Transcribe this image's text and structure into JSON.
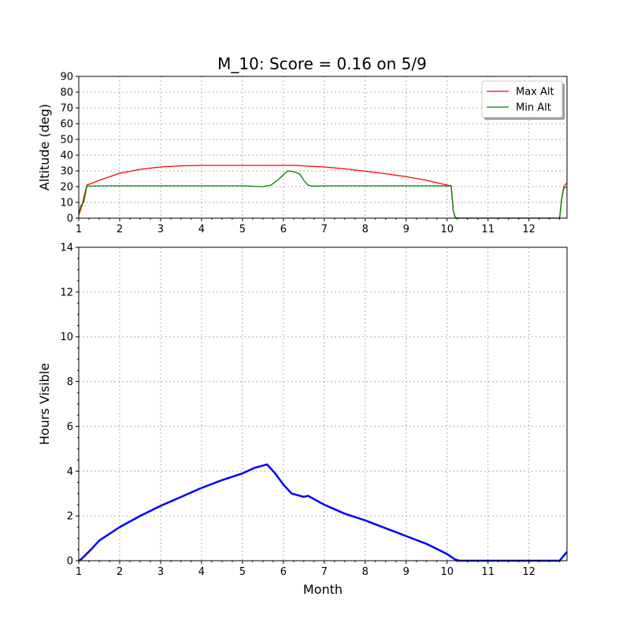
{
  "title": "M_10: Score = 0.16 on 5/9",
  "chart_data": [
    {
      "type": "line",
      "ylabel": "Altitude (deg)",
      "xlabel": "",
      "xlim": [
        1,
        12.93
      ],
      "ylim": [
        0,
        90
      ],
      "xticks": [
        1,
        2,
        3,
        4,
        5,
        6,
        7,
        8,
        9,
        10,
        11,
        12
      ],
      "yticks": [
        0,
        10,
        20,
        30,
        40,
        50,
        60,
        70,
        80,
        90
      ],
      "grid": true,
      "legend_position": "top-right",
      "series": [
        {
          "name": "Max Alt",
          "color": "#ff0000",
          "x": [
            1,
            1.08,
            1.15,
            1.2,
            1.5,
            2,
            2.5,
            3,
            3.5,
            4,
            4.5,
            5,
            5.5,
            6,
            6.3,
            6.6,
            7,
            7.5,
            8,
            8.5,
            9,
            9.5,
            10,
            10.1,
            10.15,
            10.2,
            10.3,
            11,
            12,
            12.75,
            12.8,
            12.85,
            12.93
          ],
          "y": [
            2,
            8,
            16,
            21,
            24,
            28.5,
            31,
            32.5,
            33.2,
            33.5,
            33.5,
            33.5,
            33.5,
            33.5,
            33.5,
            33,
            32.5,
            31.3,
            29.8,
            28.2,
            26.3,
            24,
            21,
            20.5,
            5,
            0.3,
            0,
            0,
            0,
            0,
            12,
            20,
            22.5
          ]
        },
        {
          "name": "Min Alt",
          "color": "#008000",
          "x": [
            1,
            1.05,
            1.12,
            1.2,
            1.5,
            2,
            3,
            4,
            5,
            5.5,
            5.7,
            5.9,
            6.1,
            6.25,
            6.4,
            6.5,
            6.6,
            6.7,
            7,
            8,
            9,
            10,
            10.1,
            10.15,
            10.2,
            10.3,
            11,
            12,
            12.75,
            12.8,
            12.85,
            12.93
          ],
          "y": [
            2,
            8,
            10,
            20.3,
            20.5,
            20.5,
            20.5,
            20.5,
            20.5,
            20,
            21,
            25,
            30,
            29.5,
            28,
            24,
            21,
            20.3,
            20.5,
            20.5,
            20.5,
            20.5,
            20.5,
            5,
            0.3,
            0,
            0,
            0,
            0,
            12,
            19,
            20
          ]
        }
      ]
    },
    {
      "type": "line",
      "ylabel": "Hours Visible",
      "xlabel": "Month",
      "xlim": [
        1,
        12.93
      ],
      "ylim": [
        0,
        14
      ],
      "xticks": [
        1,
        2,
        3,
        4,
        5,
        6,
        7,
        8,
        9,
        10,
        11,
        12
      ],
      "yticks": [
        0,
        2,
        4,
        6,
        8,
        10,
        12,
        14
      ],
      "grid": true,
      "series": [
        {
          "color": "#0000ff",
          "x": [
            1,
            1.05,
            1.3,
            1.5,
            2,
            2.5,
            3,
            3.5,
            4,
            4.5,
            5,
            5.3,
            5.5,
            5.6,
            5.8,
            6,
            6.2,
            6.5,
            6.6,
            6.7,
            7,
            7.5,
            8,
            8.5,
            9,
            9.5,
            10,
            10.2,
            10.3,
            11,
            12,
            12.75,
            12.93
          ],
          "y": [
            0,
            0.05,
            0.5,
            0.9,
            1.5,
            2.0,
            2.45,
            2.85,
            3.25,
            3.6,
            3.9,
            4.15,
            4.25,
            4.3,
            3.9,
            3.4,
            3.0,
            2.85,
            2.9,
            2.8,
            2.5,
            2.1,
            1.8,
            1.45,
            1.1,
            0.75,
            0.3,
            0.05,
            0,
            0,
            0,
            0,
            0.4
          ]
        }
      ]
    }
  ]
}
